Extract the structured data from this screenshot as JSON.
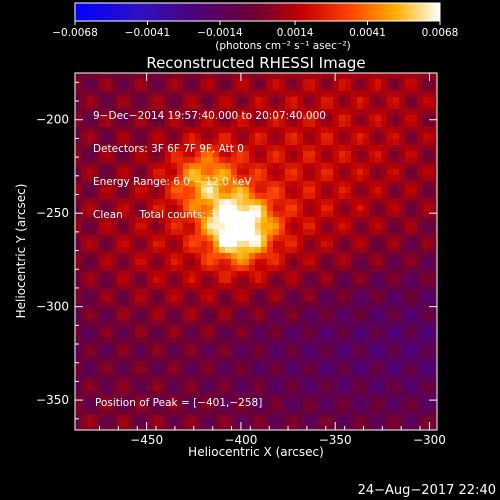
{
  "chart_data": {
    "type": "heatmap",
    "title": "Reconstructed RHESSI Image",
    "xlabel": "Heliocentric X (arcsec)",
    "ylabel": "Heliocentric Y (arcsec)",
    "xlim": [
      -488,
      -296
    ],
    "ylim": [
      -366,
      -175
    ],
    "x_ticks": [
      -450,
      -400,
      -350,
      -300
    ],
    "x_tick_labels": [
      "−450",
      "−400",
      "−350",
      "−300"
    ],
    "y_ticks": [
      -200,
      -250,
      -300,
      -350
    ],
    "y_tick_labels": [
      "−200",
      "−250",
      "−300",
      "−350"
    ],
    "colorbar": {
      "range": [
        -0.0068,
        0.0068
      ],
      "ticks": [
        -0.0068,
        -0.0041,
        -0.0014,
        0.0014,
        0.0041,
        0.0068
      ],
      "tick_labels": [
        "−0.0068",
        "−0.0041",
        "−0.0014",
        "0.0014",
        "0.0041",
        "0.0068"
      ],
      "unit_label": "(photons cm⁻² s⁻¹ asec⁻²)"
    },
    "peak": {
      "x": -401,
      "y": -258
    },
    "sources": [
      {
        "x": -401,
        "y": -258,
        "amplitude": 0.0068
      },
      {
        "x": -420,
        "y": -232,
        "amplitude": 0.0036
      }
    ]
  },
  "annotations": {
    "time_range": "9−Dec−2014 19:57:40.000 to 20:07:40.000",
    "detectors": "Detectors: 3F 6F 7F 9F, Att 0",
    "energy_range": "Energy Range: 6.0 − 12.0 keV",
    "method_counts": "Clean     Total counts: 3.30E+04",
    "peak_position": "Position of Peak = [−401,−258]"
  },
  "footer": {
    "date": "24−Aug−2017 22:40"
  }
}
